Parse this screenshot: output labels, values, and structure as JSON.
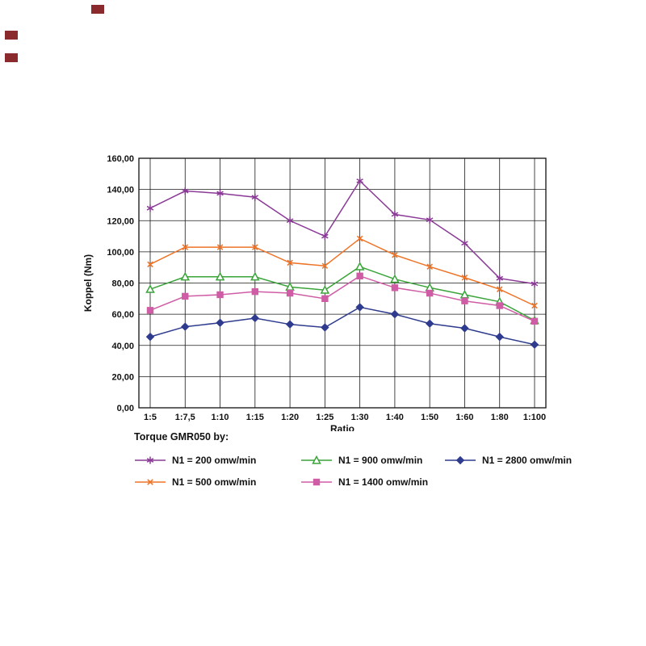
{
  "artifacts": {
    "color": "#8b2a2c"
  },
  "chart_data": {
    "type": "line",
    "title": "",
    "legend_title": "Torque GMR050 by:",
    "xlabel": "Ratio",
    "ylabel": "Koppel (Nm)",
    "ylim": [
      0,
      160
    ],
    "ytick_step": 20,
    "ytick_labels": [
      "0,00",
      "20,00",
      "40,00",
      "60,00",
      "80,00",
      "100,00",
      "120,00",
      "140,00",
      "160,00"
    ],
    "categories": [
      "1:5",
      "1:7,5",
      "1:10",
      "1:15",
      "1:20",
      "1:25",
      "1:30",
      "1:40",
      "1:50",
      "1:60",
      "1:80",
      "1:100"
    ],
    "grid": true,
    "legend_position": "bottom",
    "series": [
      {
        "name": "N1 = 200 omw/min",
        "color": "#8a3a96",
        "marker": "asterisk",
        "values": [
          128,
          139,
          137.5,
          135,
          120,
          110,
          145.5,
          124,
          120.5,
          105.5,
          83,
          79.5
        ]
      },
      {
        "name": "N1 = 500 omw/min",
        "color": "#ee7428",
        "marker": "x",
        "values": [
          92,
          103,
          103,
          103,
          93,
          91,
          108.5,
          98,
          90.5,
          83.5,
          76,
          65.5
        ]
      },
      {
        "name": "N1 = 900 omw/min",
        "color": "#3aa43a",
        "marker": "triangle-open",
        "values": [
          76,
          84,
          84,
          84,
          77.5,
          75.5,
          90.5,
          82.5,
          77,
          72.5,
          68,
          56
        ]
      },
      {
        "name": "N1 = 1400 omw/min",
        "color": "#cf5da5",
        "marker": "square",
        "values": [
          62.5,
          71.5,
          72.5,
          74.5,
          73.5,
          70,
          84.5,
          77,
          73.5,
          68.5,
          65.5,
          55.5
        ]
      },
      {
        "name": "N1 = 2800 omw/min",
        "color": "#2e3b8e",
        "marker": "diamond",
        "values": [
          45.5,
          52,
          54.5,
          57.5,
          53.5,
          51.5,
          64.5,
          60,
          54,
          51,
          45.5,
          40.5
        ]
      }
    ]
  }
}
